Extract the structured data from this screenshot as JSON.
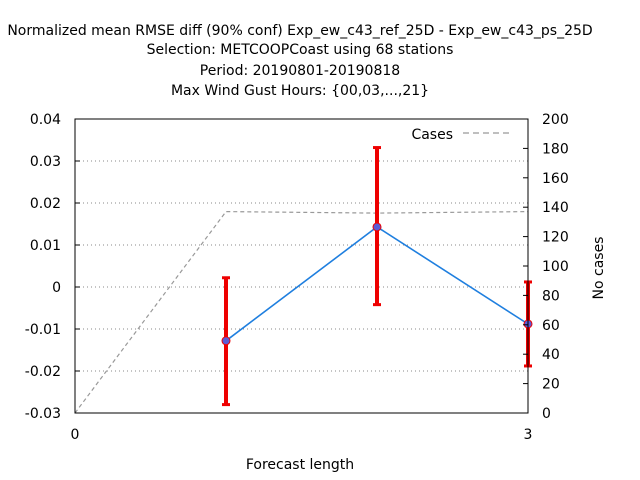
{
  "chart_data": {
    "type": "line",
    "title_lines": [
      "Normalized mean RMSE diff (90% conf) Exp_ew_c43_ref_25D - Exp_ew_c43_ps_25D",
      "Selection: METCOOPCoast using    68 stations",
      "Period: 20190801-20190818",
      "Max Wind Gust   Hours: {00,03,...,21}"
    ],
    "xlabel": "Forecast length",
    "ylabel": "",
    "y2label": "No cases",
    "xlim": [
      0,
      3
    ],
    "ylim": [
      -0.03,
      0.04
    ],
    "y2lim": [
      0,
      200
    ],
    "x_ticks": [
      "0",
      "3"
    ],
    "y_ticks": [
      "-0.03",
      "-0.02",
      "-0.01",
      "0",
      "0.01",
      "0.02",
      "0.03",
      "0.04"
    ],
    "y2_ticks": [
      "0",
      "20",
      "40",
      "60",
      "80",
      "100",
      "120",
      "140",
      "160",
      "180",
      "200"
    ],
    "grid": "horizontal-dotted",
    "legend_placement": "top-right",
    "series": [
      {
        "kind": "line-errorbar",
        "color": "#1f7fdf",
        "marker_color": "#5b5bd6",
        "errorbar_color": "#ee0000",
        "x": [
          1,
          2,
          3
        ],
        "y": [
          -0.0128,
          0.0143,
          -0.0088
        ],
        "err_low": [
          -0.028,
          -0.0042,
          -0.0188
        ],
        "err_high": [
          0.0022,
          0.0332,
          0.0012
        ]
      },
      {
        "name": "Cases",
        "kind": "dashed-line",
        "axis": "right",
        "color": "#999999",
        "x": [
          0,
          1,
          2,
          3
        ],
        "y": [
          0,
          137,
          136,
          137
        ]
      }
    ]
  }
}
